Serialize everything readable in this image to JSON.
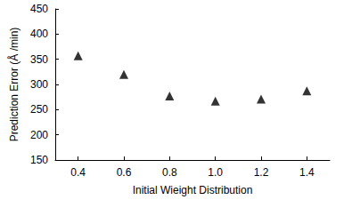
{
  "chart_data": {
    "type": "scatter",
    "x_label": "Initial Wieight Distribution",
    "y_label": "Prediction Error (Å /min)",
    "x": [
      0.4,
      0.6,
      0.8,
      1.0,
      1.2,
      1.4
    ],
    "values": [
      357,
      320,
      277,
      267,
      271,
      287
    ],
    "color": "#000000",
    "marker": "triangle",
    "xlim": [
      0.3,
      1.5
    ],
    "xticks": [
      0.4,
      0.6,
      0.8,
      {
        "value": 1.0,
        "label": "1.0"
      },
      1.2,
      1.4
    ],
    "ylim": [
      150,
      450
    ],
    "yticks": [
      150,
      200,
      250,
      300,
      350,
      400,
      450
    ],
    "grid": false
  }
}
